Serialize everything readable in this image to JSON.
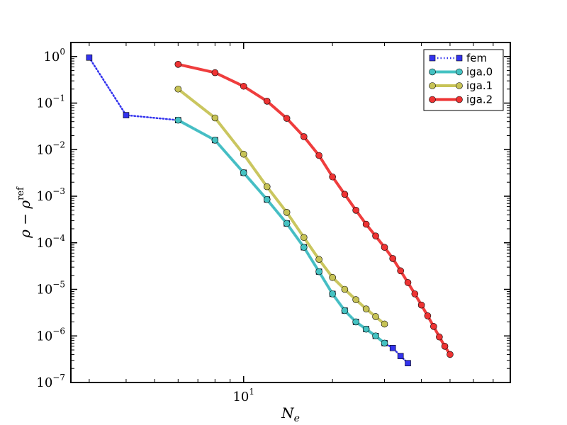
{
  "chart_data": {
    "type": "line",
    "x_scale": "log",
    "y_scale": "log",
    "xlabel": "N_e",
    "ylabel": "ρ − ρ^ref",
    "xlim": [
      2.6,
      80
    ],
    "ylim": [
      1e-07,
      2
    ],
    "x_ticks": [
      {
        "value": 10,
        "base": "10",
        "exp": "1"
      }
    ],
    "y_ticks": [
      {
        "value": 1.0,
        "base": "10",
        "exp": "0"
      },
      {
        "value": 0.1,
        "base": "10",
        "exp": "−1"
      },
      {
        "value": 0.01,
        "base": "10",
        "exp": "−2"
      },
      {
        "value": 0.001,
        "base": "10",
        "exp": "−3"
      },
      {
        "value": 0.0001,
        "base": "10",
        "exp": "−4"
      },
      {
        "value": 1e-05,
        "base": "10",
        "exp": "−5"
      },
      {
        "value": 1e-06,
        "base": "10",
        "exp": "−6"
      },
      {
        "value": 1e-07,
        "base": "10",
        "exp": "−7"
      }
    ],
    "legend_position": "top-right",
    "grid": false,
    "series": [
      {
        "name": "fem",
        "color": "#3333ee",
        "marker": "square",
        "line": "dotted",
        "x": [
          3,
          4,
          6,
          8,
          10,
          12,
          14,
          16,
          18,
          20,
          22,
          24,
          26,
          28,
          30,
          32,
          34,
          36
        ],
        "y": [
          0.95,
          0.055,
          0.043,
          0.016,
          0.0032,
          0.00085,
          0.00026,
          8e-05,
          2.4e-05,
          8e-06,
          3.5e-06,
          2e-06,
          1.4e-06,
          1e-06,
          7e-07,
          5.5e-07,
          3.7e-07,
          2.6e-07
        ]
      },
      {
        "name": "iga.0",
        "color": "#44c2c2",
        "marker": "circle",
        "line": "solid",
        "x": [
          6,
          8,
          10,
          12,
          14,
          16,
          18,
          20,
          22,
          24,
          26,
          28,
          30
        ],
        "y": [
          0.043,
          0.016,
          0.0032,
          0.00085,
          0.00026,
          8e-05,
          2.4e-05,
          8e-06,
          3.5e-06,
          2e-06,
          1.4e-06,
          1e-06,
          7e-07
        ]
      },
      {
        "name": "iga.1",
        "color": "#c7c356",
        "marker": "circle",
        "line": "solid",
        "x": [
          6,
          8,
          10,
          12,
          14,
          16,
          18,
          20,
          22,
          24,
          26,
          28,
          30
        ],
        "y": [
          0.2,
          0.048,
          0.008,
          0.0016,
          0.00045,
          0.00013,
          4.4e-05,
          1.8e-05,
          1e-05,
          6e-06,
          3.8e-06,
          2.6e-06,
          1.8e-06
        ]
      },
      {
        "name": "iga.2",
        "color": "#ee3333",
        "marker": "circle",
        "line": "solid",
        "x": [
          6,
          8,
          10,
          12,
          14,
          16,
          18,
          20,
          22,
          24,
          26,
          28,
          30,
          32,
          34,
          36,
          38,
          40,
          42,
          44,
          46,
          48,
          50
        ],
        "y": [
          0.68,
          0.45,
          0.23,
          0.11,
          0.047,
          0.019,
          0.0075,
          0.0026,
          0.0011,
          0.0005,
          0.00025,
          0.00014,
          8e-05,
          4.6e-05,
          2.5e-05,
          1.4e-05,
          8e-06,
          4.6e-06,
          2.7e-06,
          1.6e-06,
          9.5e-07,
          6e-07,
          4e-07
        ]
      }
    ]
  }
}
